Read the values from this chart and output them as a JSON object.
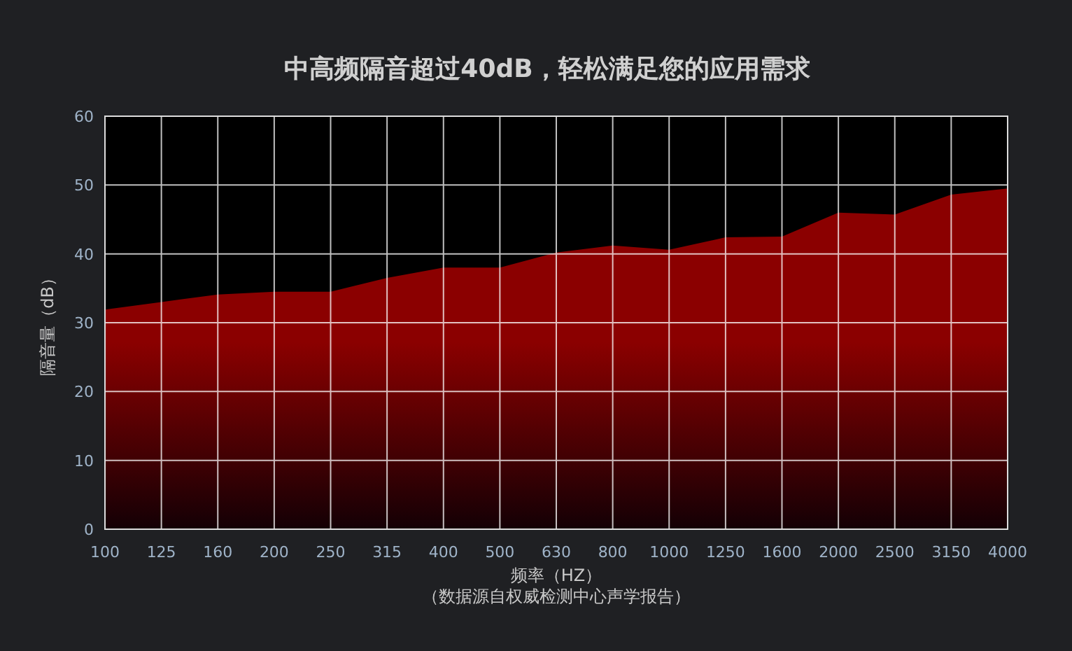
{
  "chart_data": {
    "type": "area",
    "title": "中高频隔音超过40dB，轻松满足您的应用需求",
    "xlabel": "频率（HZ）",
    "ylabel": "隔音量（dB）",
    "annotations": [
      "（数据源自权威检测中心声学报告）"
    ],
    "categories": [
      "100",
      "125",
      "160",
      "200",
      "250",
      "315",
      "400",
      "500",
      "630",
      "800",
      "1000",
      "1250",
      "1600",
      "2000",
      "2500",
      "3150",
      "4000"
    ],
    "series": [
      {
        "color": "#8b0000",
        "values": [
          31.9,
          33.0,
          34.1,
          34.5,
          34.5,
          36.5,
          38.0,
          38.0,
          40.2,
          41.2,
          40.6,
          42.4,
          42.5,
          46.0,
          45.7,
          48.6,
          49.5
        ]
      }
    ],
    "ylim": [
      0,
      60
    ],
    "yticks": [
      0,
      10,
      20,
      30,
      40,
      50,
      60
    ],
    "grid": true
  }
}
